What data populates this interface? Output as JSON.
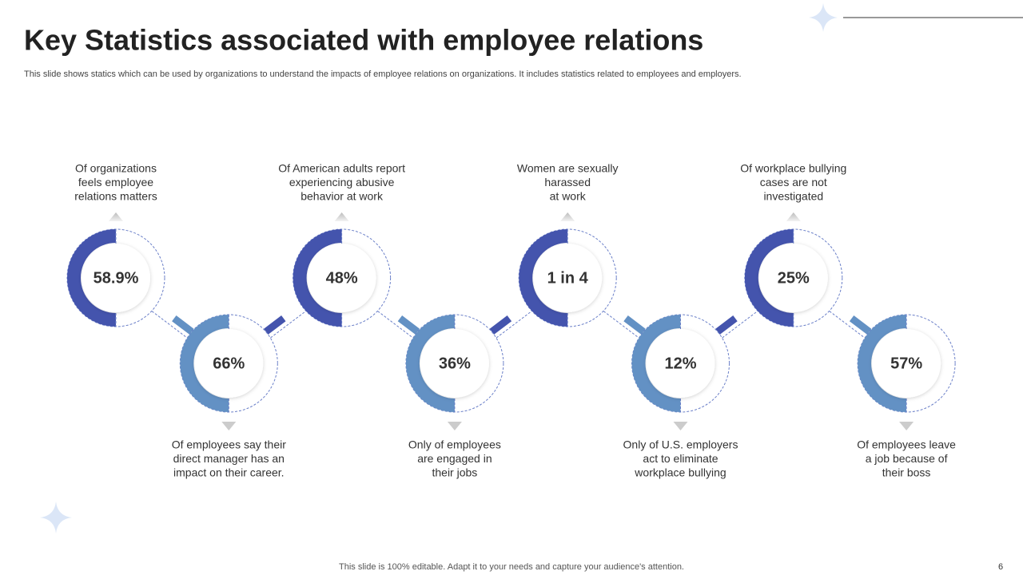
{
  "header": {
    "title": "Key Statistics associated with employee relations",
    "subtitle": "This slide shows statics which can be used by organizations to understand the impacts of employee relations on organizations. It includes statistics related to employees and employers."
  },
  "stats": [
    {
      "value": "58.9%",
      "caption": [
        "Of organizations",
        "feels employee",
        "relations matters"
      ]
    },
    {
      "value": "66%",
      "caption": [
        "Of employees say their",
        "direct manager has an",
        "impact on their career."
      ]
    },
    {
      "value": "48%",
      "caption": [
        "Of American adults report",
        "experiencing abusive",
        "behavior at work"
      ]
    },
    {
      "value": "36%",
      "caption": [
        "Only of employees",
        "are engaged in",
        "their jobs"
      ]
    },
    {
      "value": "1 in 4",
      "caption": [
        "Women are sexually",
        "harassed",
        "at work"
      ]
    },
    {
      "value": "12%",
      "caption": [
        "Only of U.S. employers",
        "act to eliminate",
        "workplace bullying"
      ]
    },
    {
      "value": "25%",
      "caption": [
        "Of workplace bullying",
        "cases are not",
        "investigated"
      ]
    },
    {
      "value": "57%",
      "caption": [
        "Of employees leave",
        "a job because of",
        "their boss"
      ]
    }
  ],
  "footer": {
    "note": "This slide is 100% editable. Adapt it to your needs and capture your audience's attention.",
    "page": "6"
  }
}
